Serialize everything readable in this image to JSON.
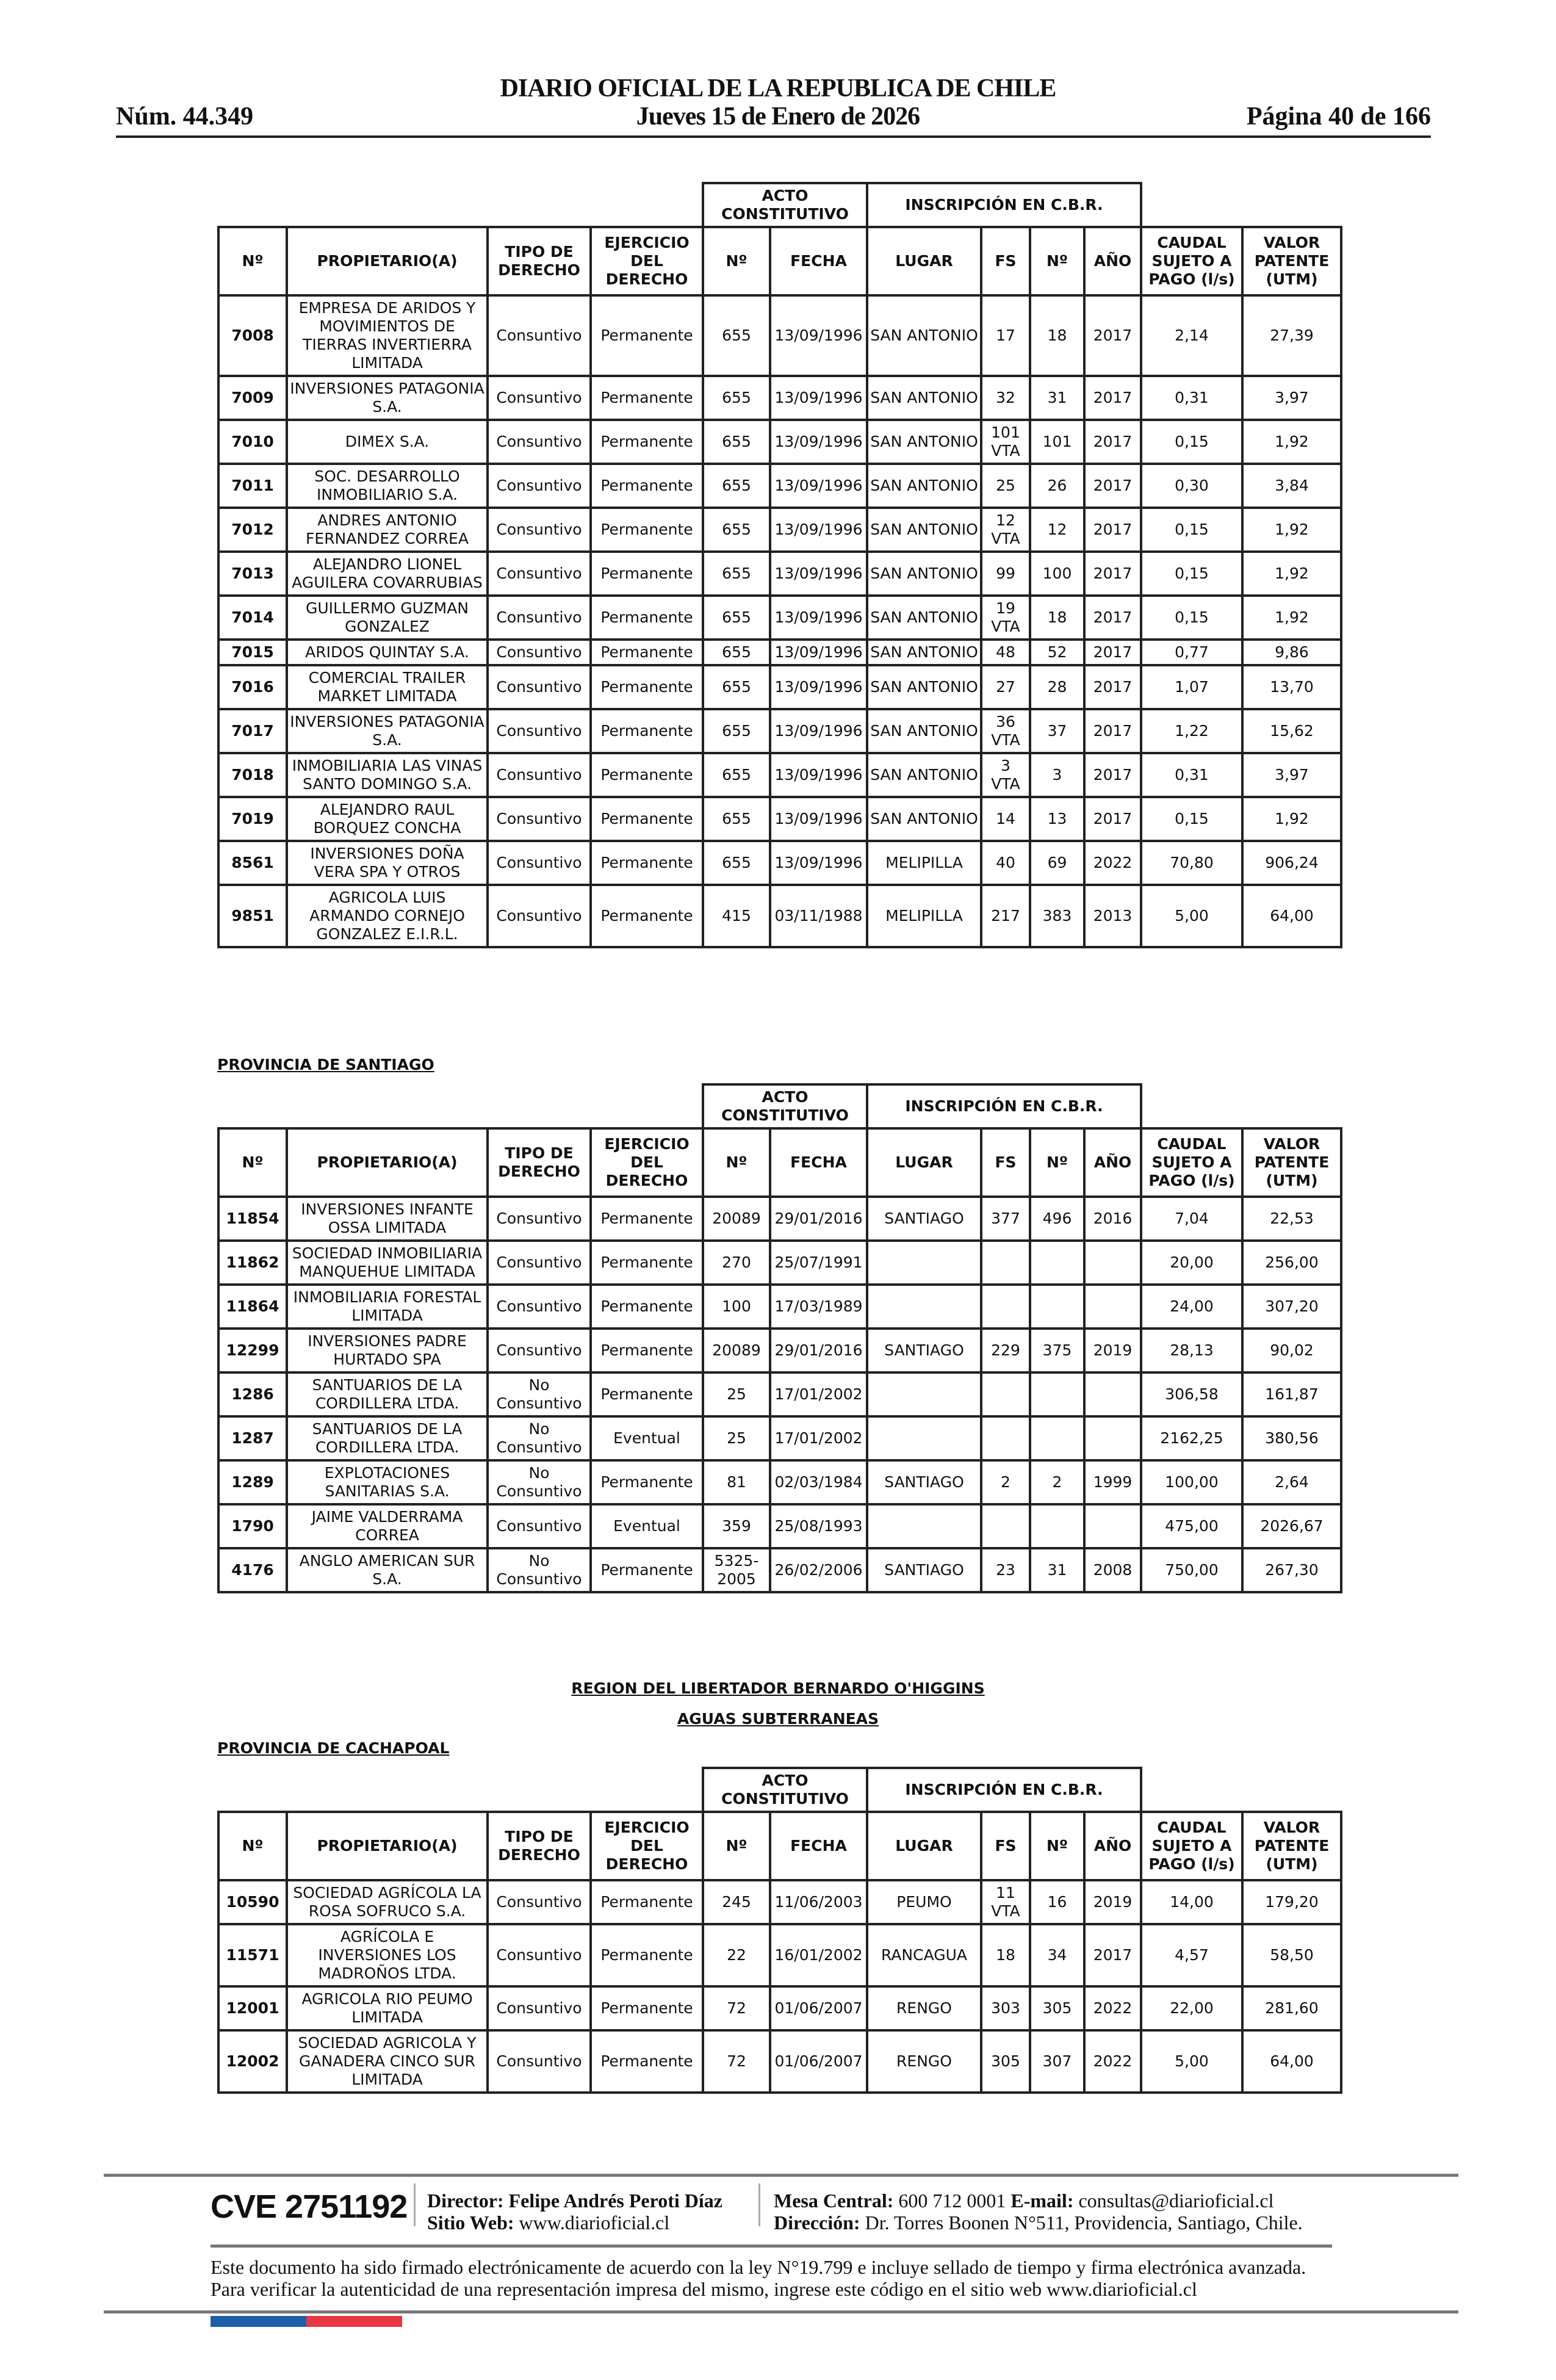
{
  "header": {
    "title": "DIARIO OFICIAL DE LA REPUBLICA DE CHILE",
    "date": "Jueves 15 de Enero de 2026",
    "number": "Núm. 44.349",
    "page": "Página 40 de 166"
  },
  "columns": {
    "group_acto": "ACTO CONSTITUTIVO",
    "group_inscripcion": "INSCRIPCIÓN EN C.B.R.",
    "t1": [
      "Nº",
      "PROPIETARIO(A)",
      "TIPO DE DERECHO",
      "EJERCICIO DEL DERECHO",
      "Nº",
      "FECHA",
      "LUGAR",
      "FS",
      "Nº",
      "AÑO",
      "CAUDAL SUJETO A PAGO (l/s)",
      "VALOR PATENTE (UTM)"
    ],
    "t2": [
      "Nº",
      "PROPIETARIO(A)",
      "TIPO DE DERECHO",
      "EJERCICIO DEL DERECHO",
      "Nº",
      "FECHA",
      "LUGAR",
      "FS",
      "Nº",
      "AÑO",
      "CAUDAL SUJETO A PAGO (l/s)",
      "VALOR PATENTE (UTM)"
    ],
    "t3": [
      "Nº",
      "PROPIETARIO(A)",
      "TIPO DE DERECHO",
      "EJERCICIO DEL DERECHO",
      "Nº",
      "FECHA",
      "LUGAR",
      "FS",
      "Nº",
      "AÑO",
      "CAUDAL SUJETO A PAGO (l/s)",
      "VALOR PATENTE (UTM)"
    ]
  },
  "table1": [
    [
      "7008",
      "EMPRESA DE ARIDOS Y MOVIMIENTOS DE TIERRAS INVERTIERRA LIMITADA",
      "Consuntivo",
      "Permanente",
      "655",
      "13/09/1996",
      "SAN ANTONIO",
      "17",
      "18",
      "2017",
      "2,14",
      "27,39"
    ],
    [
      "7009",
      "INVERSIONES PATAGONIA S.A.",
      "Consuntivo",
      "Permanente",
      "655",
      "13/09/1996",
      "SAN ANTONIO",
      "32",
      "31",
      "2017",
      "0,31",
      "3,97"
    ],
    [
      "7010",
      "DIMEX S.A.",
      "Consuntivo",
      "Permanente",
      "655",
      "13/09/1996",
      "SAN ANTONIO",
      "101 VTA",
      "101",
      "2017",
      "0,15",
      "1,92"
    ],
    [
      "7011",
      "SOC. DESARROLLO INMOBILIARIO S.A.",
      "Consuntivo",
      "Permanente",
      "655",
      "13/09/1996",
      "SAN ANTONIO",
      "25",
      "26",
      "2017",
      "0,30",
      "3,84"
    ],
    [
      "7012",
      "ANDRES ANTONIO FERNANDEZ CORREA",
      "Consuntivo",
      "Permanente",
      "655",
      "13/09/1996",
      "SAN ANTONIO",
      "12 VTA",
      "12",
      "2017",
      "0,15",
      "1,92"
    ],
    [
      "7013",
      "ALEJANDRO LIONEL AGUILERA COVARRUBIAS",
      "Consuntivo",
      "Permanente",
      "655",
      "13/09/1996",
      "SAN ANTONIO",
      "99",
      "100",
      "2017",
      "0,15",
      "1,92"
    ],
    [
      "7014",
      "GUILLERMO GUZMAN GONZALEZ",
      "Consuntivo",
      "Permanente",
      "655",
      "13/09/1996",
      "SAN ANTONIO",
      "19 VTA",
      "18",
      "2017",
      "0,15",
      "1,92"
    ],
    [
      "7015",
      "ARIDOS QUINTAY S.A.",
      "Consuntivo",
      "Permanente",
      "655",
      "13/09/1996",
      "SAN ANTONIO",
      "48",
      "52",
      "2017",
      "0,77",
      "9,86"
    ],
    [
      "7016",
      "COMERCIAL TRAILER MARKET LIMITADA",
      "Consuntivo",
      "Permanente",
      "655",
      "13/09/1996",
      "SAN ANTONIO",
      "27",
      "28",
      "2017",
      "1,07",
      "13,70"
    ],
    [
      "7017",
      "INVERSIONES PATAGONIA S.A.",
      "Consuntivo",
      "Permanente",
      "655",
      "13/09/1996",
      "SAN ANTONIO",
      "36 VTA",
      "37",
      "2017",
      "1,22",
      "15,62"
    ],
    [
      "7018",
      "INMOBILIARIA LAS VINAS SANTO DOMINGO S.A.",
      "Consuntivo",
      "Permanente",
      "655",
      "13/09/1996",
      "SAN ANTONIO",
      "3 VTA",
      "3",
      "2017",
      "0,31",
      "3,97"
    ],
    [
      "7019",
      "ALEJANDRO RAUL BORQUEZ CONCHA",
      "Consuntivo",
      "Permanente",
      "655",
      "13/09/1996",
      "SAN ANTONIO",
      "14",
      "13",
      "2017",
      "0,15",
      "1,92"
    ],
    [
      "8561",
      "INVERSIONES DOÑA VERA SPA Y OTROS",
      "Consuntivo",
      "Permanente",
      "655",
      "13/09/1996",
      "MELIPILLA",
      "40",
      "69",
      "2022",
      "70,80",
      "906,24"
    ],
    [
      "9851",
      "AGRICOLA LUIS ARMANDO CORNEJO GONZALEZ E.I.R.L.",
      "Consuntivo",
      "Permanente",
      "415",
      "03/11/1988",
      "MELIPILLA",
      "217",
      "383",
      "2013",
      "5,00",
      "64,00"
    ]
  ],
  "section_santiago": "PROVINCIA DE SANTIAGO",
  "table2": [
    [
      "11854",
      "INVERSIONES INFANTE OSSA LIMITADA",
      "Consuntivo",
      "Permanente",
      "20089",
      "29/01/2016",
      "SANTIAGO",
      "377",
      "496",
      "2016",
      "7,04",
      "22,53"
    ],
    [
      "11862",
      "SOCIEDAD INMOBILIARIA MANQUEHUE LIMITADA",
      "Consuntivo",
      "Permanente",
      "270",
      "25/07/1991",
      "",
      "",
      "",
      "",
      "20,00",
      "256,00"
    ],
    [
      "11864",
      "INMOBILIARIA FORESTAL LIMITADA",
      "Consuntivo",
      "Permanente",
      "100",
      "17/03/1989",
      "",
      "",
      "",
      "",
      "24,00",
      "307,20"
    ],
    [
      "12299",
      "INVERSIONES PADRE HURTADO SPA",
      "Consuntivo",
      "Permanente",
      "20089",
      "29/01/2016",
      "SANTIAGO",
      "229",
      "375",
      "2019",
      "28,13",
      "90,02"
    ],
    [
      "1286",
      "SANTUARIOS DE LA CORDILLERA LTDA.",
      "No Consuntivo",
      "Permanente",
      "25",
      "17/01/2002",
      "",
      "",
      "",
      "",
      "306,58",
      "161,87"
    ],
    [
      "1287",
      "SANTUARIOS DE LA CORDILLERA LTDA.",
      "No Consuntivo",
      "Eventual",
      "25",
      "17/01/2002",
      "",
      "",
      "",
      "",
      "2162,25",
      "380,56"
    ],
    [
      "1289",
      "EXPLOTACIONES SANITARIAS S.A.",
      "No Consuntivo",
      "Permanente",
      "81",
      "02/03/1984",
      "SANTIAGO",
      "2",
      "2",
      "1999",
      "100,00",
      "2,64"
    ],
    [
      "1790",
      "JAIME VALDERRAMA CORREA",
      "Consuntivo",
      "Eventual",
      "359",
      "25/08/1993",
      "",
      "",
      "",
      "",
      "475,00",
      "2026,67"
    ],
    [
      "4176",
      "ANGLO AMERICAN SUR S.A.",
      "No Consuntivo",
      "Permanente",
      "5325-2005",
      "26/02/2006",
      "SANTIAGO",
      "23",
      "31",
      "2008",
      "750,00",
      "267,30"
    ]
  ],
  "region_title": "REGION DEL LIBERTADOR BERNARDO O'HIGGINS",
  "aguas_title": "AGUAS SUBTERRANEAS",
  "section_cachapoal": "PROVINCIA DE CACHAPOAL",
  "table3": [
    [
      "10590",
      "SOCIEDAD AGRÍCOLA LA ROSA SOFRUCO S.A.",
      "Consuntivo",
      "Permanente",
      "245",
      "11/06/2003",
      "PEUMO",
      "11 VTA",
      "16",
      "2019",
      "14,00",
      "179,20"
    ],
    [
      "11571",
      "AGRÍCOLA E INVERSIONES LOS MADROÑOS LTDA.",
      "Consuntivo",
      "Permanente",
      "22",
      "16/01/2002",
      "RANCAGUA",
      "18",
      "34",
      "2017",
      "4,57",
      "58,50"
    ],
    [
      "12001",
      "AGRICOLA RIO PEUMO LIMITADA",
      "Consuntivo",
      "Permanente",
      "72",
      "01/06/2007",
      "RENGO",
      "303",
      "305",
      "2022",
      "22,00",
      "281,60"
    ],
    [
      "12002",
      "SOCIEDAD AGRICOLA Y GANADERA CINCO SUR LIMITADA",
      "Consuntivo",
      "Permanente",
      "72",
      "01/06/2007",
      "RENGO",
      "305",
      "307",
      "2022",
      "5,00",
      "64,00"
    ]
  ],
  "footer": {
    "cve": "CVE 2751192",
    "director_label": "Director:",
    "director": "Felipe Andrés Peroti Díaz",
    "web_label": "Sitio Web:",
    "web": "www.diarioficial.cl",
    "mesa_label": "Mesa Central:",
    "mesa": "600 712 0001",
    "email_label": "E-mail:",
    "email": "consultas@diarioficial.cl",
    "dir_label": "Dirección:",
    "address": "Dr. Torres Boonen N°511, Providencia, Santiago, Chile.",
    "legal": "Este documento ha sido firmado electrónicamente de acuerdo con la ley N°19.799 e incluye sellado de tiempo y firma electrónica avanzada. Para verificar la autenticidad de una representación impresa del mismo, ingrese este código en el sitio web www.diarioficial.cl"
  },
  "colors": {
    "flag_blue": "#1f5ea8",
    "flag_red": "#e83843"
  }
}
